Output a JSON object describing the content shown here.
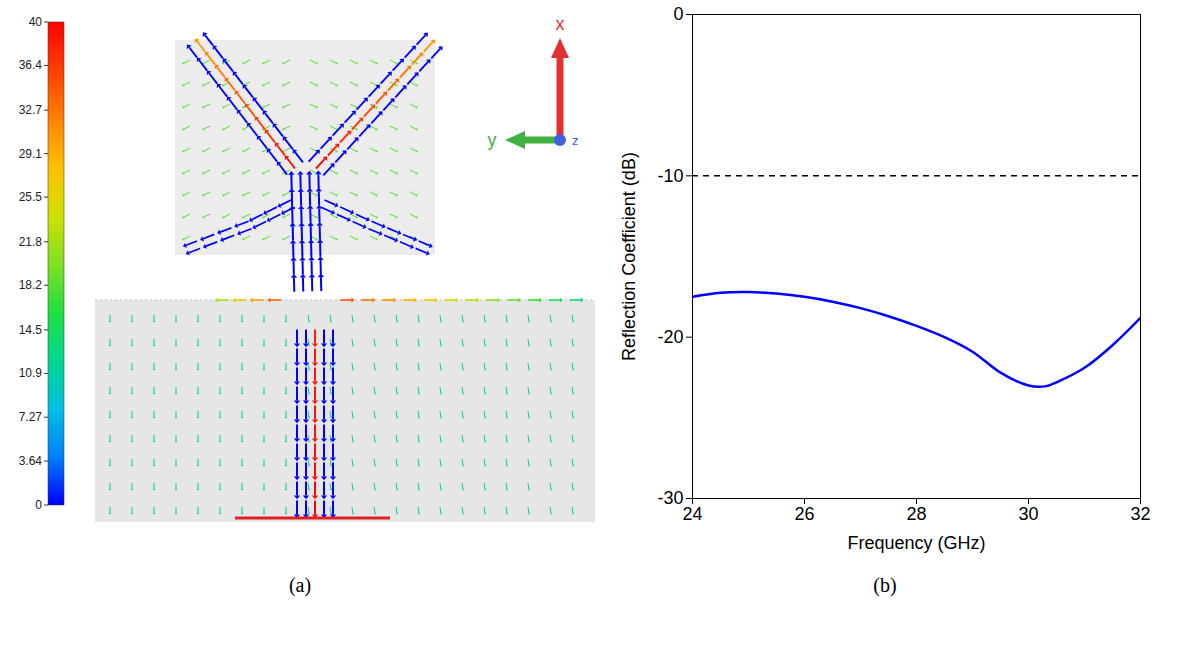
{
  "chart_data": [
    {
      "type": "vector_field",
      "panel_label": "(a)",
      "colorbar": {
        "range": [
          0,
          40
        ],
        "ticks": [
          0,
          3.64,
          7.27,
          10.9,
          14.5,
          18.2,
          21.8,
          25.5,
          29.1,
          32.7,
          36.4,
          40
        ],
        "colors": [
          "#0000ff",
          "#0080ff",
          "#00c0e0",
          "#00d890",
          "#20e040",
          "#80e020",
          "#d0e000",
          "#ffc000",
          "#ff8000",
          "#ff4000",
          "#ff0000"
        ]
      },
      "axis_labels": [
        "x",
        "y",
        "z"
      ],
      "axis_colors": [
        "#e03030",
        "#40b040",
        "#4060e0"
      ]
    },
    {
      "type": "line",
      "panel_label": "(b)",
      "x_label": "Frequency (GHz)",
      "y_label": "Reflection Coefficient (dB)",
      "x": [
        24,
        24.5,
        25,
        25.5,
        26,
        26.5,
        27,
        27.5,
        28,
        28.5,
        29,
        29.5,
        30,
        30.3,
        30.5,
        31,
        31.5,
        32
      ],
      "series": [
        {
          "color": "#0000ff",
          "line_style": "solid",
          "values": [
            -17.5,
            -17.25,
            -17.2,
            -17.3,
            -17.5,
            -17.8,
            -18.2,
            -18.7,
            -19.3,
            -20.0,
            -20.9,
            -22.2,
            -23.0,
            -23.05,
            -22.8,
            -21.9,
            -20.5,
            -18.8
          ]
        }
      ],
      "reference_lines": [
        {
          "y": -10,
          "color": "#000000",
          "line_style": "dashed"
        }
      ],
      "xlim": [
        24,
        32
      ],
      "xticks": [
        24,
        26,
        28,
        30,
        32
      ],
      "ylim": [
        -30,
        0
      ],
      "yticks": [
        -30,
        -20,
        -10,
        0
      ],
      "grid": false
    }
  ]
}
